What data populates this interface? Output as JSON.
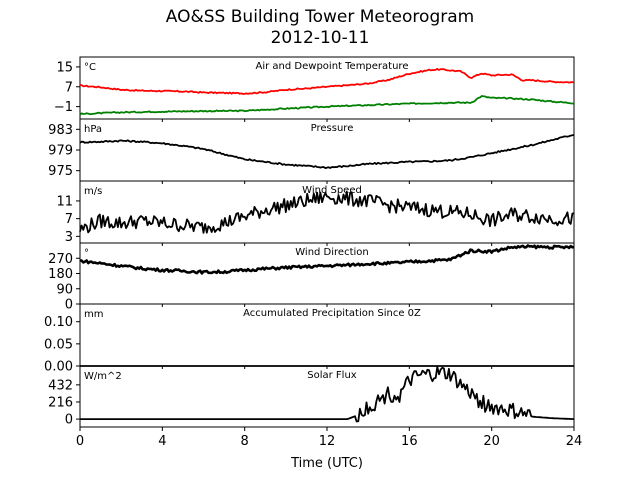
{
  "figure": {
    "title": "AO&SS Building Tower Meteorogram",
    "subtitle": "2012-10-11",
    "xlabel": "Time (UTC)"
  },
  "chart_data": [
    {
      "type": "line",
      "title": "Air and Dewpoint Temperature",
      "unit": "°C",
      "ylim": [
        -6,
        19
      ],
      "yticks": [
        15,
        7,
        -1
      ],
      "series": [
        {
          "color": "#ff0000",
          "x": [
            0,
            1,
            2,
            3,
            4,
            5,
            6,
            7,
            8,
            9,
            10,
            11,
            12,
            13,
            14,
            15,
            16,
            17,
            17.5,
            18,
            18.5,
            19,
            19.5,
            20,
            20.5,
            21,
            21.5,
            22,
            23,
            24
          ],
          "y": [
            7.5,
            6.8,
            5.8,
            5.4,
            5.3,
            5.1,
            4.7,
            4.5,
            4.3,
            4.8,
            5.8,
            6.3,
            7.0,
            7.6,
            8.3,
            9.8,
            12.3,
            13.8,
            14.0,
            13.6,
            13.2,
            10.6,
            12.4,
            11.6,
            11.8,
            11.9,
            9.6,
            9.6,
            9.0,
            8.8
          ]
        },
        {
          "color": "#008000",
          "x": [
            0,
            2,
            4,
            6,
            8,
            10,
            12,
            14,
            16,
            18,
            19,
            19.5,
            20,
            21,
            22,
            23,
            24
          ],
          "y": [
            -4.0,
            -3.3,
            -3.0,
            -2.8,
            -2.7,
            -1.8,
            -1.0,
            -0.4,
            0.2,
            0.6,
            0.6,
            3.2,
            2.5,
            2.3,
            1.8,
            1.0,
            0.4
          ]
        }
      ]
    },
    {
      "type": "line",
      "title": "Pressure",
      "unit": "hPa",
      "ylim": [
        973,
        985
      ],
      "yticks": [
        983,
        979,
        975
      ],
      "series": [
        {
          "color": "#000000",
          "x": [
            0,
            1,
            2,
            3,
            4,
            5,
            6,
            7,
            8,
            9,
            10,
            11,
            12,
            13,
            14,
            15,
            16,
            17,
            18,
            19,
            20,
            21,
            22,
            23,
            24
          ],
          "y": [
            980.5,
            980.6,
            980.8,
            980.6,
            980.3,
            979.8,
            979.2,
            978.2,
            977.2,
            976.7,
            976.2,
            975.9,
            975.6,
            975.9,
            976.3,
            976.5,
            976.7,
            976.8,
            977.0,
            977.6,
            978.4,
            979.2,
            980.0,
            981.0,
            982.0
          ]
        }
      ]
    },
    {
      "type": "line",
      "title": "Wind Speed",
      "unit": "m/s",
      "ylim": [
        1.5,
        15.5
      ],
      "yticks": [
        11,
        7,
        3
      ],
      "series": [
        {
          "color": "#000000",
          "x": [
            0,
            1,
            2,
            3,
            4,
            5,
            6,
            7,
            8,
            9,
            10,
            11,
            12,
            13,
            14,
            15,
            16,
            17,
            18,
            19,
            20,
            21,
            22,
            23,
            24
          ],
          "y": [
            4.5,
            6.5,
            6.0,
            6.5,
            6.0,
            5.5,
            5.0,
            6.0,
            7.5,
            9.0,
            10.0,
            11.0,
            12.0,
            11.5,
            11.0,
            10.0,
            9.5,
            9.0,
            8.5,
            8.0,
            6.5,
            8.0,
            7.5,
            7.0,
            7.0
          ]
        }
      ]
    },
    {
      "type": "line",
      "title": "Wind Direction",
      "unit": "°",
      "ylim": [
        0,
        360
      ],
      "yticks": [
        270,
        180,
        90,
        0
      ],
      "series": [
        {
          "color": "#000000",
          "x": [
            0,
            1,
            2,
            3,
            4,
            5,
            6,
            7,
            8,
            9,
            10,
            11,
            12,
            13,
            14,
            15,
            16,
            17,
            18,
            18.5,
            19,
            20,
            21,
            22,
            23,
            24
          ],
          "y": [
            255,
            240,
            225,
            210,
            200,
            195,
            188,
            190,
            200,
            208,
            215,
            220,
            225,
            230,
            238,
            240,
            248,
            255,
            262,
            290,
            315,
            310,
            335,
            338,
            335,
            335
          ]
        }
      ]
    },
    {
      "type": "line",
      "title": "Accumulated Precipitation Since 0Z",
      "unit": "mm",
      "ylim": [
        0,
        0.14
      ],
      "yticks": [
        0.1,
        0.05,
        0.0
      ],
      "ytick_labels": [
        "0.10",
        "0.05",
        "0.00"
      ],
      "series": [
        {
          "color": "#000000",
          "x": [
            0,
            24
          ],
          "y": [
            0,
            0
          ]
        }
      ]
    },
    {
      "type": "line",
      "title": "Solar Flux",
      "unit": "W/m^2",
      "ylim": [
        -100,
        670
      ],
      "yticks": [
        432,
        216,
        0
      ],
      "series": [
        {
          "color": "#000000",
          "x": [
            0,
            13,
            13.5,
            14,
            14.5,
            15,
            15.5,
            16,
            16.5,
            17,
            17.5,
            18,
            18.5,
            19,
            19.5,
            20,
            21,
            22,
            23,
            24
          ],
          "y": [
            0,
            0,
            50,
            160,
            230,
            330,
            280,
            480,
            540,
            560,
            580,
            560,
            430,
            320,
            210,
            150,
            100,
            30,
            10,
            0
          ]
        }
      ]
    }
  ],
  "x_axis": {
    "xlim": [
      0,
      24
    ],
    "ticks": [
      0,
      4,
      8,
      12,
      16,
      20,
      24
    ]
  }
}
